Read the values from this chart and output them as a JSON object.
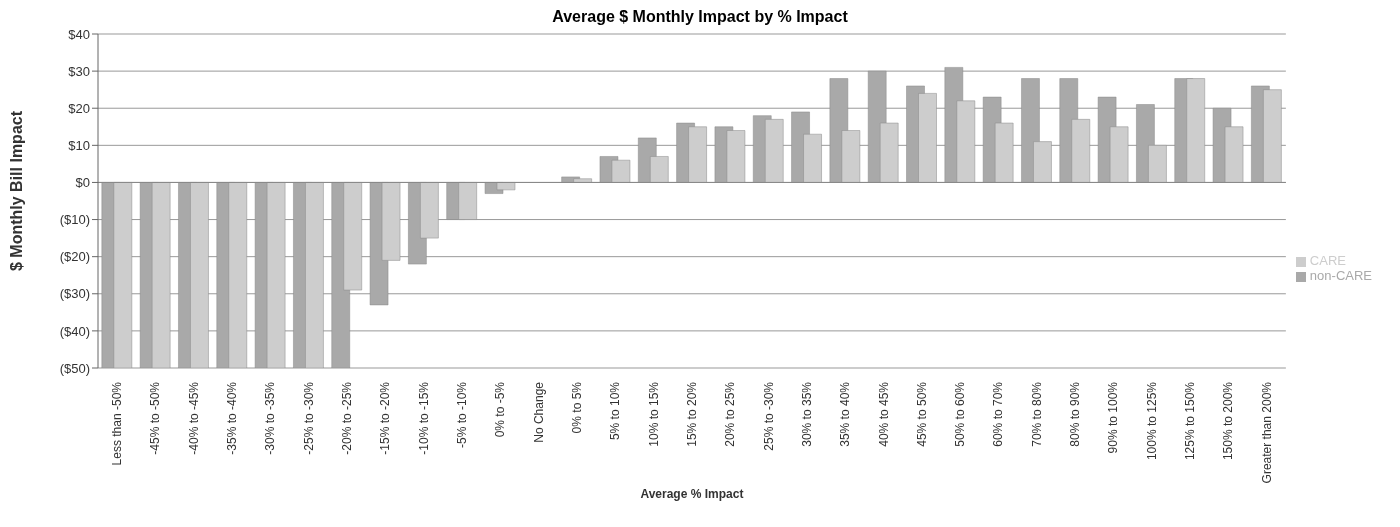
{
  "chart_data": {
    "type": "bar",
    "title": "Average $ Monthly Impact by % Impact",
    "xlabel": "Average % Impact",
    "ylabel": "$ Monthly Bill Impact",
    "categories": [
      "Less than -50%",
      "-45% to -50%",
      "-40% to -45%",
      "-35% to -40%",
      "-30% to -35%",
      "-25% to -30%",
      "-20% to -25%",
      "-15% to -20%",
      "-10% to -15%",
      "-5% to -10%",
      "0% to -5%",
      "No Change",
      "0% to 5%",
      "5% to 10%",
      "10% to 15%",
      "15% to 20%",
      "20% to 25%",
      "25% to -30%",
      "30% to 35%",
      "35% to 40%",
      "40% to 45%",
      "45% to 50%",
      "50% to 60%",
      "60% to 70%",
      "70% to 80%",
      "80% to 90%",
      "90% to 100%",
      "100% to 125%",
      "125% to 150%",
      "150% to 200%",
      "Greater than 200%"
    ],
    "series": [
      {
        "name": "non-CARE",
        "color": "#a9a9a9",
        "values": [
          -50,
          -50,
          -50,
          -50,
          -50,
          -50,
          -50,
          -33,
          -22,
          -10,
          -3,
          0,
          1.5,
          7,
          12,
          16,
          15,
          18,
          19,
          28,
          30,
          26,
          31,
          23,
          28,
          28,
          23,
          21,
          28,
          20,
          26
        ]
      },
      {
        "name": "CARE",
        "color": "#cdcdcd",
        "values": [
          -50,
          -50,
          -50,
          -50,
          -50,
          -50,
          -29,
          -21,
          -15,
          -10,
          -2,
          0,
          1,
          6,
          7,
          15,
          14,
          17,
          13,
          14,
          16,
          24,
          22,
          16,
          11,
          17,
          15,
          10,
          28,
          15,
          25
        ]
      }
    ],
    "ylim": [
      -50,
      40
    ],
    "yticks": [
      {
        "value": -50,
        "label": "($50)"
      },
      {
        "value": -40,
        "label": "($40)"
      },
      {
        "value": -30,
        "label": "($30)"
      },
      {
        "value": -20,
        "label": "($20)"
      },
      {
        "value": -10,
        "label": "($10)"
      },
      {
        "value": 0,
        "label": "$0"
      },
      {
        "value": 10,
        "label": "$10"
      },
      {
        "value": 20,
        "label": "$20"
      },
      {
        "value": 30,
        "label": "$30"
      },
      {
        "value": 40,
        "label": "$40"
      }
    ],
    "grid": "y",
    "legend": "right"
  }
}
